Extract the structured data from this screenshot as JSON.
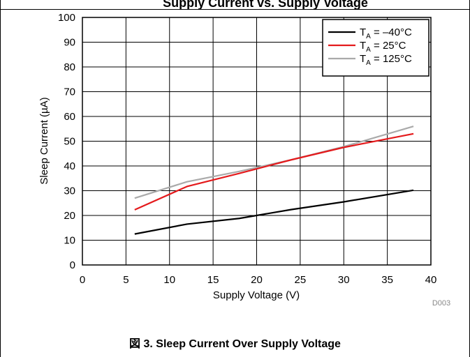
{
  "header": {
    "title_fragment": "Supply Current vs. Supply Voltage"
  },
  "caption": {
    "prefix": "図 3.",
    "text": "Sleep Current Over Supply Voltage"
  },
  "figure_id": "D003",
  "chart_data": {
    "type": "line",
    "xlabel": "Supply Voltage (V)",
    "ylabel": "Sleep Current (µA)",
    "xlim": [
      0,
      40
    ],
    "ylim": [
      0,
      100
    ],
    "xticks": [
      0,
      5,
      10,
      15,
      20,
      25,
      30,
      35,
      40
    ],
    "yticks": [
      0,
      10,
      20,
      30,
      40,
      50,
      60,
      70,
      80,
      90,
      100
    ],
    "grid": true,
    "legend_position": "top-right",
    "series": [
      {
        "name": "T_A = –40°C",
        "label_main": "T",
        "label_sub": "A",
        "label_rest": " = –40°C",
        "color": "#000000",
        "x": [
          6,
          12,
          18,
          20,
          24,
          30,
          38
        ],
        "y": [
          12.5,
          16.5,
          18.8,
          20,
          22.4,
          25.5,
          30.2
        ]
      },
      {
        "name": "T_A = 25°C",
        "label_main": "T",
        "label_sub": "A",
        "label_rest": " = 25°C",
        "color": "#e41a1c",
        "x": [
          6,
          12,
          18,
          24,
          30,
          38
        ],
        "y": [
          22.3,
          31.7,
          37,
          42.5,
          47.5,
          53
        ]
      },
      {
        "name": "T_A = 125°C",
        "label_main": "T",
        "label_sub": "A",
        "label_rest": " = 125°C",
        "color": "#aaaaaa",
        "x": [
          6,
          12,
          18,
          24,
          30,
          38
        ],
        "y": [
          27,
          33.6,
          37.8,
          42.5,
          47.8,
          56
        ]
      }
    ]
  }
}
